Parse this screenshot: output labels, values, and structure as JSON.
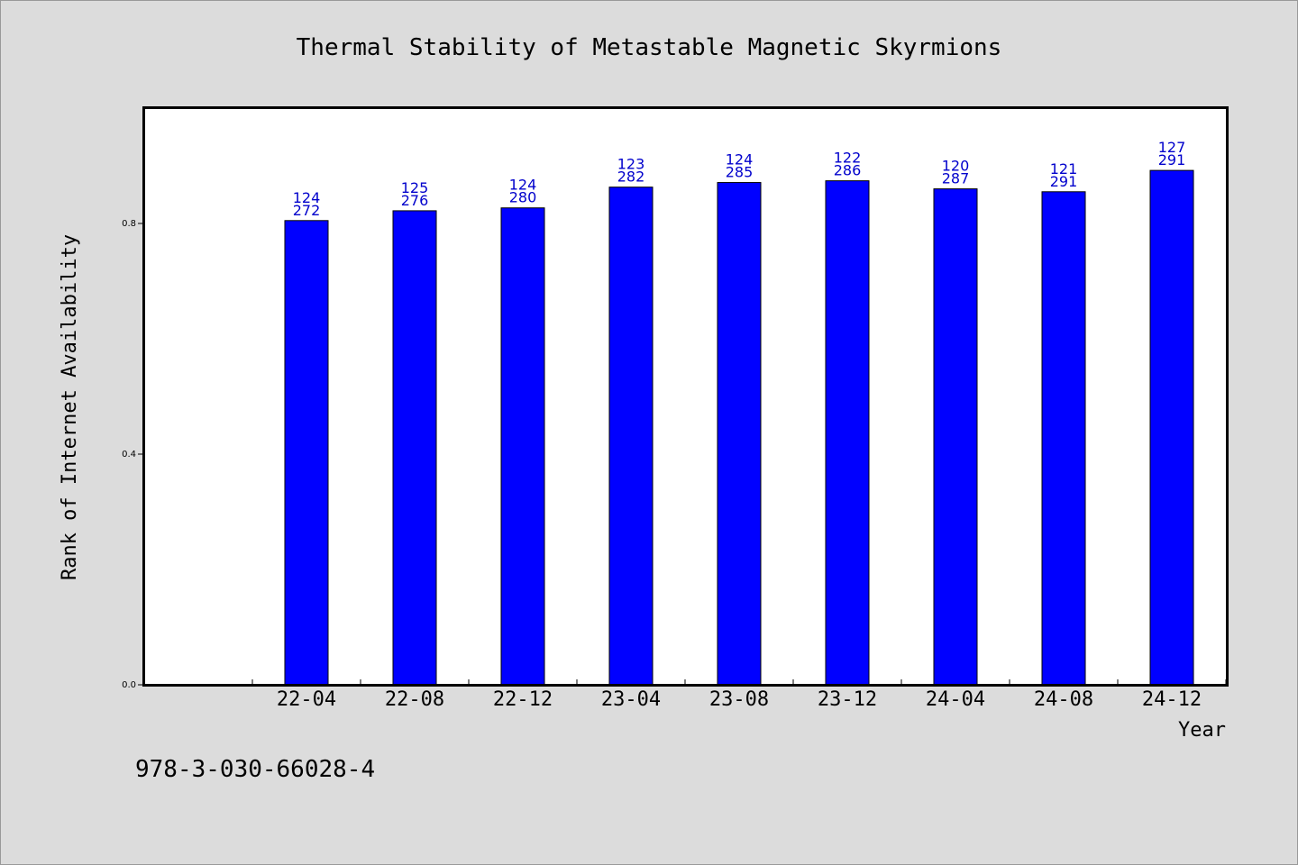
{
  "chart_data": {
    "type": "bar",
    "title": "Thermal Stability of Metastable Magnetic Skyrmions",
    "xlabel": "Year",
    "ylabel": "Rank of Internet Availability",
    "footnote": "978-3-030-66028-4",
    "categories": [
      "22-04",
      "22-08",
      "22-12",
      "23-04",
      "23-08",
      "23-12",
      "24-04",
      "24-08",
      "24-12"
    ],
    "values": [
      0.805,
      0.822,
      0.827,
      0.863,
      0.871,
      0.874,
      0.86,
      0.855,
      0.892
    ],
    "labels_top": [
      "124",
      "125",
      "124",
      "123",
      "124",
      "122",
      "120",
      "121",
      "127"
    ],
    "labels_bottom": [
      "272",
      "276",
      "280",
      "282",
      "285",
      "286",
      "287",
      "291",
      "291"
    ],
    "ylim": [
      0,
      1.0
    ],
    "yticks": [
      {
        "value": 0.0,
        "label": "0.0"
      },
      {
        "value": 0.4,
        "label": "0.4"
      },
      {
        "value": 0.8,
        "label": "0.8"
      }
    ],
    "grid": false,
    "legend": "none",
    "colors": {
      "bar": "#0000ff",
      "bar_edge": "#000000",
      "data_label": "#0000cc",
      "background": "#dcdcdc",
      "plot_background": "#ffffff"
    }
  }
}
